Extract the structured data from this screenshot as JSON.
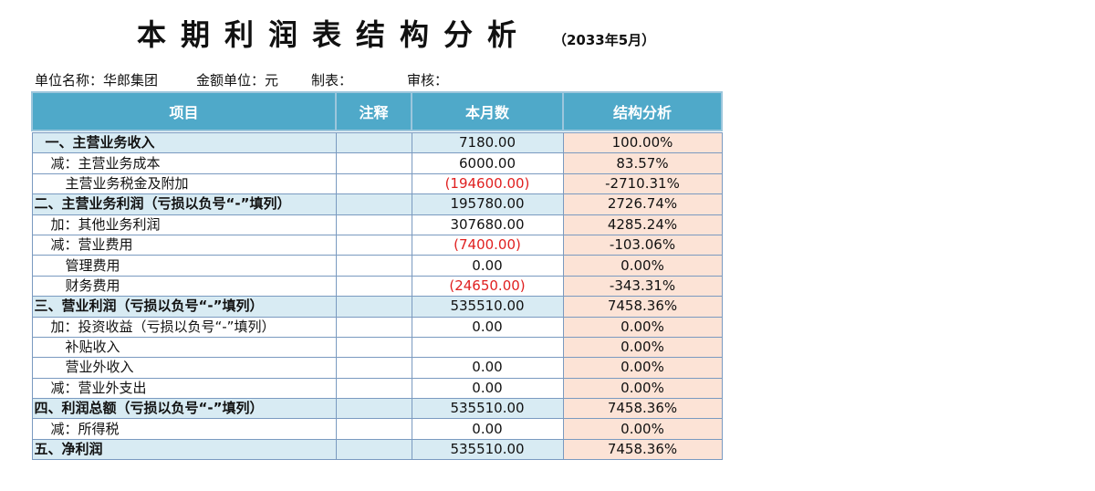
{
  "header": {
    "title": "本期利润表结构分析",
    "period": "（2033年5月）"
  },
  "meta": {
    "unit_name": "单位名称：华郎集团",
    "currency_unit": "金额单位：元",
    "prepared_by": "制表：",
    "reviewed_by": "审核："
  },
  "table": {
    "columns": [
      "项目",
      "注释",
      "本月数",
      "结构分析"
    ],
    "rows": [
      {
        "item": "一、主营业务收入",
        "note": "",
        "amount": "7180.00",
        "ratio": "100.00%"
      },
      {
        "item": "减：主营业务成本",
        "note": "",
        "amount": "6000.00",
        "ratio": "83.57%"
      },
      {
        "item": "主营业务税金及附加",
        "note": "",
        "amount": "(194600.00)",
        "ratio": "-2710.31%"
      },
      {
        "item": "二、主营业务利润（亏损以负号“-”填列）",
        "note": "",
        "amount": "195780.00",
        "ratio": "2726.74%"
      },
      {
        "item": "加：其他业务利润",
        "note": "",
        "amount": "307680.00",
        "ratio": "4285.24%"
      },
      {
        "item": "减：营业费用",
        "note": "",
        "amount": "(7400.00)",
        "ratio": "-103.06%"
      },
      {
        "item": "管理费用",
        "note": "",
        "amount": "0.00",
        "ratio": "0.00%"
      },
      {
        "item": "财务费用",
        "note": "",
        "amount": "(24650.00)",
        "ratio": "-343.31%"
      },
      {
        "item": "三、营业利润（亏损以负号“-”填列）",
        "note": "",
        "amount": "535510.00",
        "ratio": "7458.36%"
      },
      {
        "item": "加：投资收益（亏损以负号“-”填列）",
        "note": "",
        "amount": "0.00",
        "ratio": "0.00%"
      },
      {
        "item": "补贴收入",
        "note": "",
        "amount": "",
        "ratio": "0.00%"
      },
      {
        "item": "营业外收入",
        "note": "",
        "amount": "0.00",
        "ratio": "0.00%"
      },
      {
        "item": "减：营业外支出",
        "note": "",
        "amount": "0.00",
        "ratio": "0.00%"
      },
      {
        "item": "四、利润总额（亏损以负号“-”填列）",
        "note": "",
        "amount": "535510.00",
        "ratio": "7458.36%"
      },
      {
        "item": "减：所得税",
        "note": "",
        "amount": "0.00",
        "ratio": "0.00%"
      },
      {
        "item": "五、净利润",
        "note": "",
        "amount": "535510.00",
        "ratio": "7458.36%"
      }
    ]
  },
  "colors": {
    "header_bg": "#4fa9c9",
    "major_row_bg": "#d8ebf3",
    "ratio_bg": "#fce3d6",
    "negative_text": "#e02020"
  }
}
